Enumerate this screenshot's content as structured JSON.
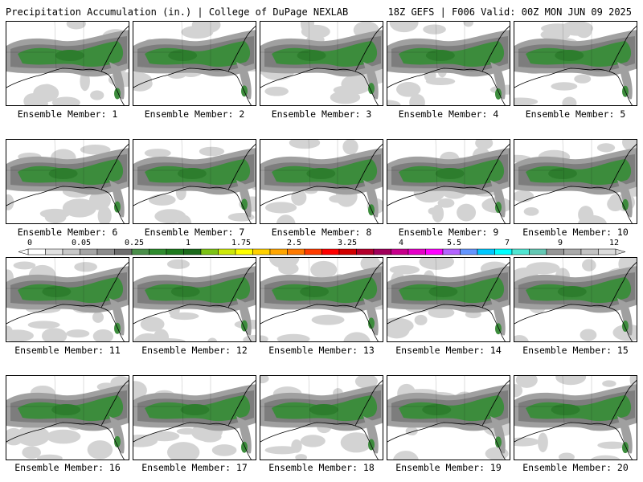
{
  "header": {
    "title_left": "Precipitation Accumulation (in.) | College of DuPage NEXLAB",
    "title_right": "18Z GEFS | F006 Valid: 00Z MON JUN 09 2025"
  },
  "member_label_prefix": "Ensemble Member: ",
  "members": [
    "1",
    "2",
    "3",
    "4",
    "5",
    "6",
    "7",
    "8",
    "9",
    "10",
    "11",
    "12",
    "13",
    "14",
    "15",
    "16",
    "17",
    "18",
    "19",
    "20"
  ],
  "colorbar": {
    "tick_labels": [
      "0",
      "0.05",
      "0.25",
      "1",
      "1.75",
      "2.5",
      "3.25",
      "4",
      "5.5",
      "7",
      "9",
      "12"
    ],
    "colors": [
      "#ffffff",
      "#e1e1e1",
      "#c8c8c8",
      "#a5a5a5",
      "#8c8c8c",
      "#6e6e6e",
      "#4b8f4b",
      "#2e8b2e",
      "#1e7a1e",
      "#1c6b1c",
      "#7cc216",
      "#cde80a",
      "#ffff00",
      "#ffd000",
      "#ffa500",
      "#ff7a00",
      "#ff3c00",
      "#ff0000",
      "#d20000",
      "#b4002c",
      "#a0005a",
      "#c8008c",
      "#e600c8",
      "#ff00ff",
      "#b464ff",
      "#6496ff",
      "#00c8ff",
      "#00ffff",
      "#50e6d2",
      "#64c8b4",
      "#969696",
      "#aaaaaa",
      "#c3c3c3",
      "#dcdcdc"
    ],
    "field_colors": {
      "light": "#d3d3d3",
      "mid": "#a0a0a0",
      "dark": "#6e6e6e",
      "green": "#3c8c3c",
      "deepgreen": "#2d7d2d"
    }
  }
}
